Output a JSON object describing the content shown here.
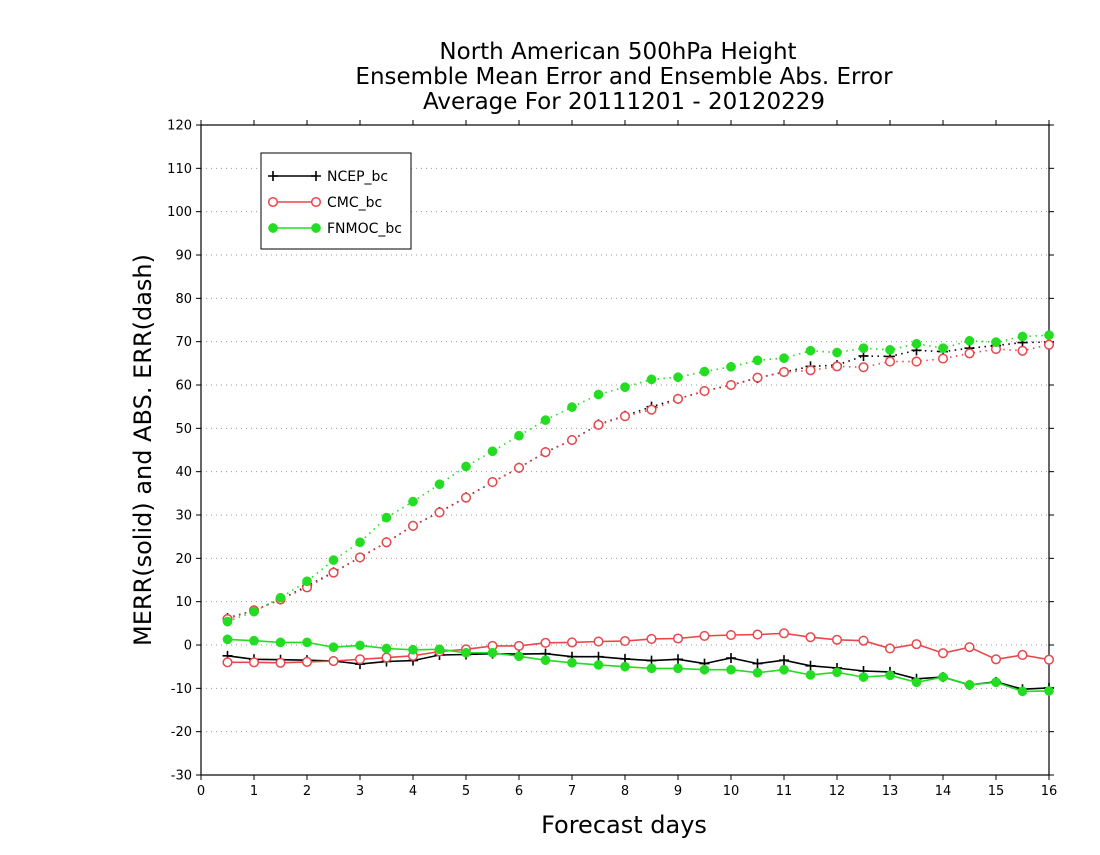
{
  "chart_data": {
    "type": "line",
    "title": [
      "North American 500hPa Height",
      "Ensemble Mean Error and Ensemble Abs. Error",
      "Average For 20111201 - 20120229"
    ],
    "xlabel": "Forecast days",
    "ylabel": "MERR(solid) and ABS. ERR(dash)",
    "xlim": [
      0,
      16
    ],
    "ylim": [
      -30,
      120
    ],
    "xticks": [
      0,
      1,
      2,
      3,
      4,
      5,
      6,
      7,
      8,
      9,
      10,
      11,
      12,
      13,
      14,
      15,
      16
    ],
    "yticks": [
      -30,
      -20,
      -10,
      0,
      10,
      20,
      30,
      40,
      50,
      60,
      70,
      80,
      90,
      100,
      110,
      120
    ],
    "grid": true,
    "legend_position": "top-left",
    "x": [
      0.5,
      1,
      1.5,
      2,
      2.5,
      3,
      3.5,
      4,
      4.5,
      5,
      5.5,
      6,
      6.5,
      7,
      7.5,
      8,
      8.5,
      9,
      9.5,
      10,
      10.5,
      11,
      11.5,
      12,
      12.5,
      13,
      13.5,
      14,
      14.5,
      15,
      15.5,
      16
    ],
    "series": [
      {
        "name": "NCEP_bc",
        "color": "#000000",
        "marker": "plus",
        "merr": [
          -2.5,
          -3.3,
          -3.4,
          -3.5,
          -3.7,
          -4.4,
          -3.8,
          -3.6,
          -2.3,
          -2.2,
          -2.0,
          -2.1,
          -2.0,
          -2.7,
          -2.7,
          -3.2,
          -3.6,
          -3.3,
          -4.3,
          -3.0,
          -4.3,
          -3.5,
          -4.8,
          -5.3,
          -6.0,
          -6.2,
          -7.8,
          -7.4,
          -9.2,
          -8.5,
          -10.2,
          -9.9
        ],
        "abserr": [
          6.2,
          8.0,
          10.5,
          13.6,
          16.8,
          20.2,
          23.7,
          27.5,
          30.7,
          34.1,
          37.6,
          40.9,
          44.5,
          47.3,
          50.9,
          52.9,
          55.0,
          56.8,
          58.6,
          60.0,
          61.6,
          63.0,
          64.3,
          64.6,
          66.7,
          66.6,
          68.0,
          67.7,
          68.5,
          69.1,
          69.8,
          69.9
        ]
      },
      {
        "name": "CMC_bc",
        "color": "#e8474c",
        "marker": "open-circle",
        "merr": [
          -4.0,
          -4.0,
          -4.1,
          -3.9,
          -3.7,
          -3.3,
          -2.9,
          -2.5,
          -1.5,
          -1.0,
          -0.2,
          -0.2,
          0.5,
          0.6,
          0.8,
          0.9,
          1.4,
          1.5,
          2.1,
          2.3,
          2.4,
          2.7,
          1.8,
          1.2,
          1.0,
          -0.8,
          0.2,
          -1.9,
          -0.5,
          -3.3,
          -2.3,
          -3.4
        ],
        "abserr": [
          6.0,
          8.0,
          10.5,
          13.3,
          16.7,
          20.2,
          23.7,
          27.5,
          30.6,
          34.0,
          37.6,
          40.9,
          44.5,
          47.3,
          50.8,
          52.8,
          54.3,
          56.8,
          58.6,
          60.0,
          61.7,
          63.0,
          63.4,
          64.3,
          64.1,
          65.4,
          65.4,
          66.1,
          67.3,
          68.3,
          67.9,
          69.3
        ]
      },
      {
        "name": "FNMOC_bc",
        "color": "#22dd22",
        "marker": "filled-circle",
        "merr": [
          1.3,
          1.0,
          0.6,
          0.6,
          -0.5,
          -0.1,
          -0.8,
          -1.1,
          -1.0,
          -1.8,
          -1.8,
          -2.6,
          -3.5,
          -4.1,
          -4.6,
          -5.0,
          -5.4,
          -5.4,
          -5.7,
          -5.7,
          -6.4,
          -5.7,
          -6.9,
          -6.3,
          -7.4,
          -7.0,
          -8.6,
          -7.4,
          -9.2,
          -8.6,
          -10.7,
          -10.6
        ],
        "abserr": [
          5.4,
          7.7,
          10.9,
          14.7,
          19.6,
          23.7,
          29.4,
          33.1,
          37.1,
          41.2,
          44.7,
          48.3,
          51.9,
          54.9,
          57.8,
          59.5,
          61.3,
          61.8,
          63.1,
          64.2,
          65.7,
          66.2,
          67.9,
          67.5,
          68.5,
          68.1,
          69.5,
          68.5,
          70.2,
          69.9,
          71.2,
          71.5
        ]
      }
    ]
  }
}
